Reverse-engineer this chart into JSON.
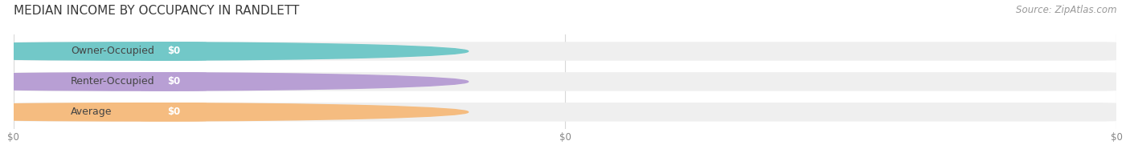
{
  "title": "MEDIAN INCOME BY OCCUPANCY IN RANDLETT",
  "source": "Source: ZipAtlas.com",
  "categories": [
    "Owner-Occupied",
    "Renter-Occupied",
    "Average"
  ],
  "values": [
    0,
    0,
    0
  ],
  "bar_colors": [
    "#72c8c8",
    "#b89fd4",
    "#f5bc80"
  ],
  "bar_bg_color": "#efefef",
  "label_text": [
    "$0",
    "$0",
    "$0"
  ],
  "background_color": "#ffffff",
  "title_fontsize": 11,
  "source_fontsize": 8.5,
  "cat_fontsize": 9,
  "val_fontsize": 8.5,
  "xtick_labels": [
    "$0",
    "$0",
    "$0"
  ],
  "xtick_positions": [
    0,
    0.5,
    1.0
  ]
}
